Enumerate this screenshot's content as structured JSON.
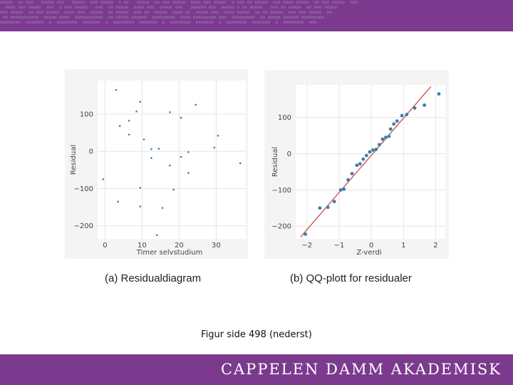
{
  "caption_text": "Figur side 498 (nederst)",
  "brand_text": "CAPPELEN DAMM AKADEMISK",
  "colors": {
    "bar": "#7b3a8e",
    "point": "#3a7fa8",
    "line": "#d23a3a"
  },
  "chart_data": [
    {
      "type": "scatter",
      "title": "(a) Residualdiagram",
      "xlabel": "Timer selvstudium",
      "ylabel": "Residual",
      "xlim": [
        -2,
        38
      ],
      "ylim": [
        -235,
        190
      ],
      "xticks": [
        0,
        10,
        20,
        30
      ],
      "yticks": [
        100,
        0,
        -100,
        -200
      ],
      "grid": true,
      "points": [
        {
          "x": -0.5,
          "y": -75
        },
        {
          "x": 3,
          "y": 165
        },
        {
          "x": 4,
          "y": 68
        },
        {
          "x": 3.5,
          "y": -135
        },
        {
          "x": 6.5,
          "y": 82
        },
        {
          "x": 6.5,
          "y": 45
        },
        {
          "x": 8.5,
          "y": 107
        },
        {
          "x": 9.5,
          "y": 133
        },
        {
          "x": 9.5,
          "y": -98
        },
        {
          "x": 9.5,
          "y": -148
        },
        {
          "x": 10.5,
          "y": 32
        },
        {
          "x": 12.5,
          "y": 6
        },
        {
          "x": 12.5,
          "y": -18
        },
        {
          "x": 14.5,
          "y": 7
        },
        {
          "x": 14,
          "y": -225
        },
        {
          "x": 15.5,
          "y": -152
        },
        {
          "x": 17.5,
          "y": 105
        },
        {
          "x": 17.5,
          "y": -38
        },
        {
          "x": 18.5,
          "y": -103
        },
        {
          "x": 20.5,
          "y": 90
        },
        {
          "x": 20.5,
          "y": -15
        },
        {
          "x": 22.5,
          "y": -2
        },
        {
          "x": 22.5,
          "y": -58
        },
        {
          "x": 24.5,
          "y": 125
        },
        {
          "x": 29.5,
          "y": 10
        },
        {
          "x": 30.5,
          "y": 42
        },
        {
          "x": 36.5,
          "y": -32
        }
      ]
    },
    {
      "type": "scatter",
      "title": "(b) QQ-plott for residualer",
      "xlabel": "Z-verdi",
      "ylabel": "Residual",
      "xlim": [
        -2.35,
        2.3
      ],
      "ylim": [
        -235,
        190
      ],
      "xticks": [
        -2,
        -1,
        0,
        1,
        2
      ],
      "yticks": [
        100,
        0,
        -100,
        -200
      ],
      "grid": true,
      "reference_line": {
        "x": [
          -2.2,
          1.85
        ],
        "y": [
          -230,
          185
        ]
      },
      "points": [
        {
          "x": -2.05,
          "y": -222
        },
        {
          "x": -1.6,
          "y": -150
        },
        {
          "x": -1.35,
          "y": -148
        },
        {
          "x": -1.15,
          "y": -132
        },
        {
          "x": -0.95,
          "y": -100
        },
        {
          "x": -0.85,
          "y": -98
        },
        {
          "x": -0.72,
          "y": -72
        },
        {
          "x": -0.6,
          "y": -55
        },
        {
          "x": -0.45,
          "y": -32
        },
        {
          "x": -0.35,
          "y": -28
        },
        {
          "x": -0.25,
          "y": -15
        },
        {
          "x": -0.15,
          "y": -5
        },
        {
          "x": -0.05,
          "y": 5
        },
        {
          "x": 0.05,
          "y": 10
        },
        {
          "x": 0.15,
          "y": 12
        },
        {
          "x": 0.25,
          "y": 25
        },
        {
          "x": 0.35,
          "y": 40
        },
        {
          "x": 0.45,
          "y": 45
        },
        {
          "x": 0.55,
          "y": 48
        },
        {
          "x": 0.6,
          "y": 68
        },
        {
          "x": 0.7,
          "y": 82
        },
        {
          "x": 0.8,
          "y": 90
        },
        {
          "x": 0.95,
          "y": 105
        },
        {
          "x": 1.1,
          "y": 108
        },
        {
          "x": 1.35,
          "y": 126
        },
        {
          "x": 1.65,
          "y": 134
        },
        {
          "x": 2.1,
          "y": 165
        }
      ]
    }
  ]
}
